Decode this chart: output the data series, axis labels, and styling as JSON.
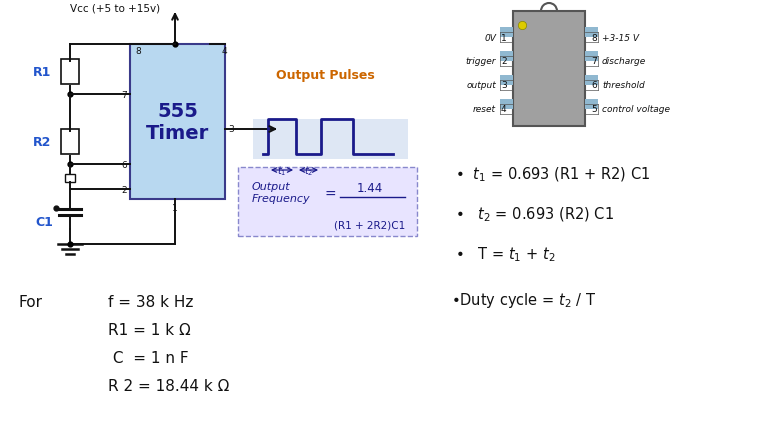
{
  "bg_color": "#ffffff",
  "timer_box_color": "#b8d8f0",
  "timer_box_edge": "#3a3a8a",
  "pulse_fill": "#c8d8ee",
  "freq_box_fill": "#e8e4ff",
  "freq_box_edge": "#8888cc",
  "ic_body_color": "#a0a0a0",
  "ic_pin_color": "#606060",
  "ic_pin_fill": "#90b8d0",
  "blue_text": "#2255cc",
  "dark_blue": "#1a1a8a",
  "orange_text": "#cc6600",
  "black": "#111111",
  "vcc_label": "Vcc (+5 to +15v)",
  "timer_label1": "555",
  "timer_label2": "Timer",
  "output_pulses_label": "Output Pulses",
  "freq_label1": "Output",
  "freq_label2": "Frequency",
  "freq_eq": "=",
  "freq_num": "1.44",
  "freq_den": "(R1 + 2R2)C1",
  "ic_left_labels": [
    "0V",
    "trigger",
    "output",
    "reset"
  ],
  "ic_right_labels": [
    "+3-15 V",
    "discharge",
    "threshold",
    "control voltage"
  ],
  "ic_left_pins": [
    "1",
    "2",
    "3",
    "4"
  ],
  "ic_right_pins": [
    "8",
    "7",
    "6",
    "5"
  ],
  "formula1": "t_1 = 0.693 (R1 + R2) C1",
  "formula2": "t_2 = 0.693 (R2) C1",
  "formula3": "T = t_1 + t_2",
  "formula4": "Duty cycle = t_2 / T",
  "for_label": "For",
  "spec1": "f = 38 k Hz",
  "spec2": "R1 = 1 k Ω",
  "spec3": " C  = 1 n F",
  "spec4": "R 2 = 18.44 k Ω"
}
